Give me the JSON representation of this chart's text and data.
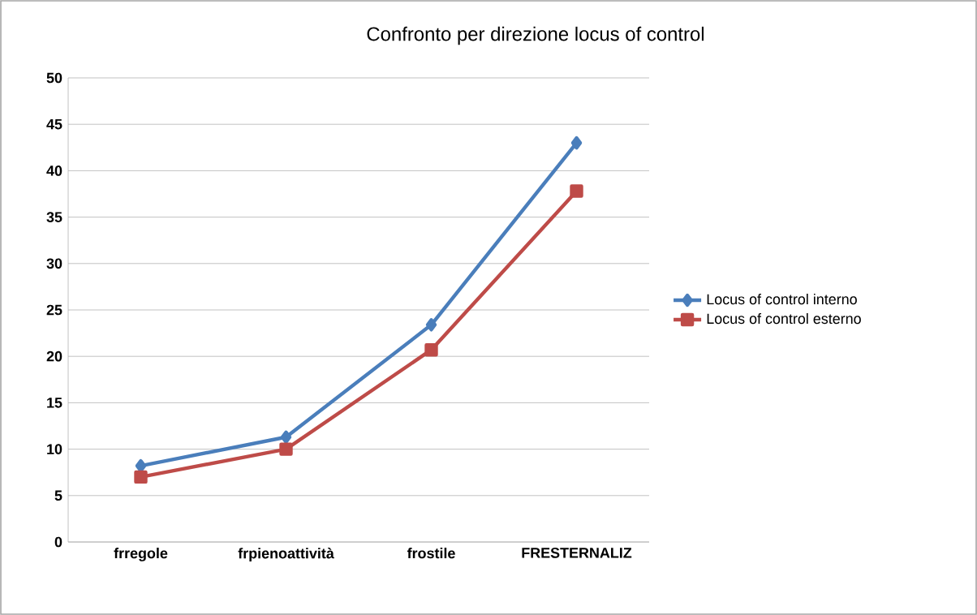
{
  "chart_data": {
    "type": "line",
    "title": "Confronto per direzione locus of control",
    "categories": [
      "frregole",
      "frpienoattività",
      "frostile",
      "FRESTERNALIZ"
    ],
    "series": [
      {
        "name": "Locus of control interno",
        "color": "#4a7ebb",
        "marker": "diamond",
        "values": [
          8.2,
          11.3,
          23.4,
          43
        ]
      },
      {
        "name": "Locus of control esterno",
        "color": "#be4b48",
        "marker": "square",
        "values": [
          7,
          10,
          20.7,
          37.8
        ]
      }
    ],
    "ylim": [
      0,
      50
    ],
    "yticks": [
      0,
      5,
      10,
      15,
      20,
      25,
      30,
      35,
      40,
      45,
      50
    ],
    "grid": "y",
    "legend": "right"
  }
}
